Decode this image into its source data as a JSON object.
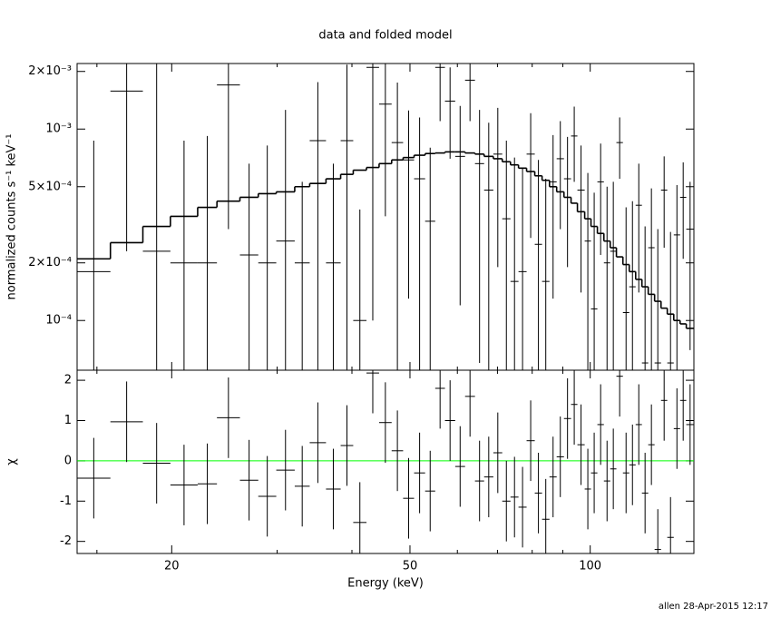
{
  "chart_data": [
    {
      "type": "errorbar",
      "title": "data and folded model",
      "ylabel": "normalized counts s⁻¹ keV⁻¹",
      "log_x": true,
      "log_y": true,
      "ylim": [
        5.5e-05,
        0.0022
      ],
      "yticks": [
        {
          "value": 0.0001,
          "label": "10⁻⁴"
        },
        {
          "value": 0.0002,
          "label": "2×10⁻⁴"
        },
        {
          "value": 0.0005,
          "label": "5×10⁻⁴"
        },
        {
          "value": 0.001,
          "label": "10⁻³"
        },
        {
          "value": 0.002,
          "label": "2×10⁻³"
        }
      ],
      "bins": [
        13.9,
        15.8,
        17.9,
        19.9,
        22.1,
        23.8,
        26.0,
        27.9,
        29.9,
        32.1,
        34.0,
        36.2,
        38.3,
        40.2,
        42.3,
        44.4,
        46.6,
        48.7,
        50.8,
        53.0,
        55.1,
        57.2,
        59.5,
        61.8,
        64.2,
        66.5,
        68.9,
        71.3,
        73.6,
        75.9,
        78.3,
        80.8,
        83.1,
        85.5,
        87.9,
        90.4,
        92.9,
        95.2,
        97.9,
        100.3,
        102.8,
        105.4,
        108.0,
        110.6,
        113.4,
        116.2,
        119.1,
        122.0,
        125.0,
        128.1,
        131.3,
        134.5,
        137.9,
        141.3,
        144.7,
        149
      ],
      "data": {
        "color": "#000000",
        "values": [
          0.00018,
          0.00158,
          0.00023,
          0.0002,
          0.0002,
          0.0017,
          0.00022,
          0.0002,
          0.00026,
          0.0002,
          0.00087,
          0.0002,
          0.00087,
          0.0001,
          0.0021,
          0.00135,
          0.00085,
          0.00069,
          0.00055,
          0.00033,
          0.0021,
          0.0014,
          0.00072,
          0.0018,
          0.00066,
          0.00048,
          0.00074,
          0.00034,
          0.00016,
          0.00018,
          0.00074,
          0.00025,
          0.00016,
          0.00053,
          0.0007,
          0.00055,
          0.00092,
          0.00048,
          0.00026,
          0.000115,
          0.00053,
          0.0002,
          0.00023,
          0.00085,
          0.00011,
          0.00015,
          0.0004,
          6e-05,
          0.00024,
          6e-05,
          0.00048,
          6e-05,
          0.00028,
          0.00044,
          0.0003
        ],
        "errors": [
          0.00069,
          0.00135,
          0.0022,
          0.00067,
          0.00072,
          0.0014,
          0.00044,
          0.00062,
          0.001,
          0.00033,
          0.00089,
          0.00046,
          0.0013,
          0.00028,
          0.002,
          0.001,
          0.0009,
          0.00056,
          0.0006,
          0.00047,
          0.001,
          0.0007,
          0.0006,
          0.0007,
          0.0006,
          0.0006,
          0.00055,
          0.00053,
          0.00055,
          0.00045,
          0.00047,
          0.00044,
          0.00039,
          0.0004,
          0.0004,
          0.00036,
          0.00039,
          0.00034,
          0.00033,
          0.00035,
          0.00031,
          0.0003,
          0.0003,
          0.0003,
          0.00028,
          0.00027,
          0.00026,
          0.00025,
          0.00025,
          0.00024,
          0.00024,
          0.00023,
          0.00023,
          0.00023,
          0.00023
        ]
      },
      "model": {
        "color": "#000000",
        "values": [
          0.00021,
          0.000255,
          0.00031,
          0.00035,
          0.00039,
          0.00042,
          0.00044,
          0.00046,
          0.00047,
          0.0005,
          0.00052,
          0.00055,
          0.00058,
          0.00061,
          0.00063,
          0.00066,
          0.00069,
          0.00071,
          0.00073,
          0.000745,
          0.00075,
          0.00076,
          0.00076,
          0.00075,
          0.00074,
          0.00072,
          0.0007,
          0.000675,
          0.00065,
          0.000625,
          0.0006,
          0.00057,
          0.00054,
          0.0005,
          0.00047,
          0.00044,
          0.00041,
          0.00037,
          0.00034,
          0.00031,
          0.000285,
          0.00026,
          0.00024,
          0.000215,
          0.000196,
          0.00018,
          0.000164,
          0.00015,
          0.000137,
          0.000126,
          0.000116,
          0.000108,
          0.0001,
          9.6e-05,
          9.1e-05
        ]
      }
    },
    {
      "type": "residual",
      "xlabel": "Energy (keV)",
      "ylabel": "χ",
      "xlim": [
        13.9,
        149
      ],
      "xticks": [
        20,
        50,
        100
      ],
      "xminorticks": [
        15,
        30,
        40,
        60,
        70,
        80,
        90
      ],
      "ylim": [
        -2.3,
        2.25
      ],
      "yticks": [
        -2,
        -1,
        0,
        1,
        2
      ],
      "values": [
        -0.43,
        0.97,
        -0.06,
        -0.6,
        -0.57,
        1.07,
        -0.48,
        -0.88,
        -0.23,
        -0.63,
        0.45,
        -0.7,
        0.38,
        -1.53,
        2.18,
        0.95,
        0.25,
        -0.93,
        -0.3,
        -0.75,
        1.8,
        1.0,
        -0.14,
        1.6,
        -0.5,
        -0.4,
        0.2,
        -1.0,
        -0.9,
        -1.15,
        0.5,
        -0.8,
        -1.45,
        -0.4,
        0.1,
        1.05,
        1.4,
        0.4,
        -0.7,
        -0.3,
        0.9,
        -0.5,
        -0.2,
        2.1,
        -0.3,
        -0.1,
        0.9,
        -0.8,
        0.4,
        -2.2,
        1.5,
        -1.9,
        0.8,
        1.5,
        0.9
      ],
      "error": 1,
      "color": "#000000",
      "reference_line": {
        "value": 0,
        "color": "#00ff00"
      }
    }
  ],
  "footer": "allen 28-Apr-2015 12:17"
}
